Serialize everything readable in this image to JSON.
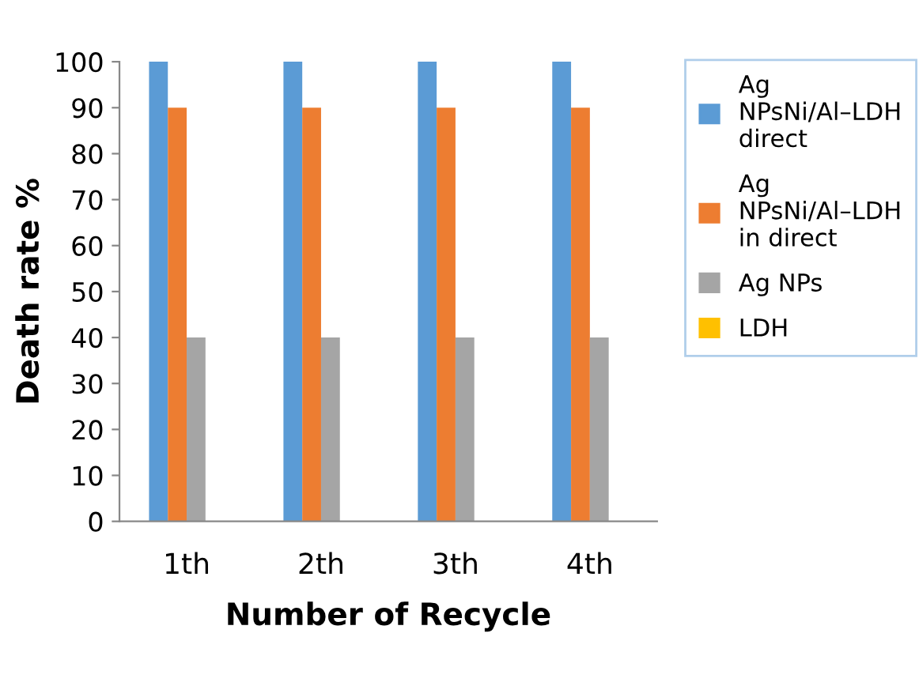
{
  "chart_data": {
    "type": "bar",
    "xlabel": "Number of Recycle",
    "ylabel": "Death rate %",
    "categories": [
      "1th",
      "2th",
      "3th",
      "4th"
    ],
    "series": [
      {
        "name": "Ag NPsNi/Al–LDH direct",
        "color": "#5b9bd5",
        "values": [
          100,
          100,
          100,
          100
        ]
      },
      {
        "name": "Ag NPsNi/Al–LDH in direct",
        "color": "#ed7d31",
        "values": [
          90,
          90,
          90,
          90
        ]
      },
      {
        "name": "Ag NPs",
        "color": "#a5a5a5",
        "values": [
          40,
          40,
          40,
          40
        ]
      },
      {
        "name": "LDH",
        "color": "#ffc000",
        "values": [
          0,
          0,
          0,
          0
        ]
      }
    ],
    "ylim": [
      0,
      100
    ],
    "yticks": [
      0,
      10,
      20,
      30,
      40,
      50,
      60,
      70,
      80,
      90,
      100
    ],
    "grid": false,
    "legend": "right"
  }
}
